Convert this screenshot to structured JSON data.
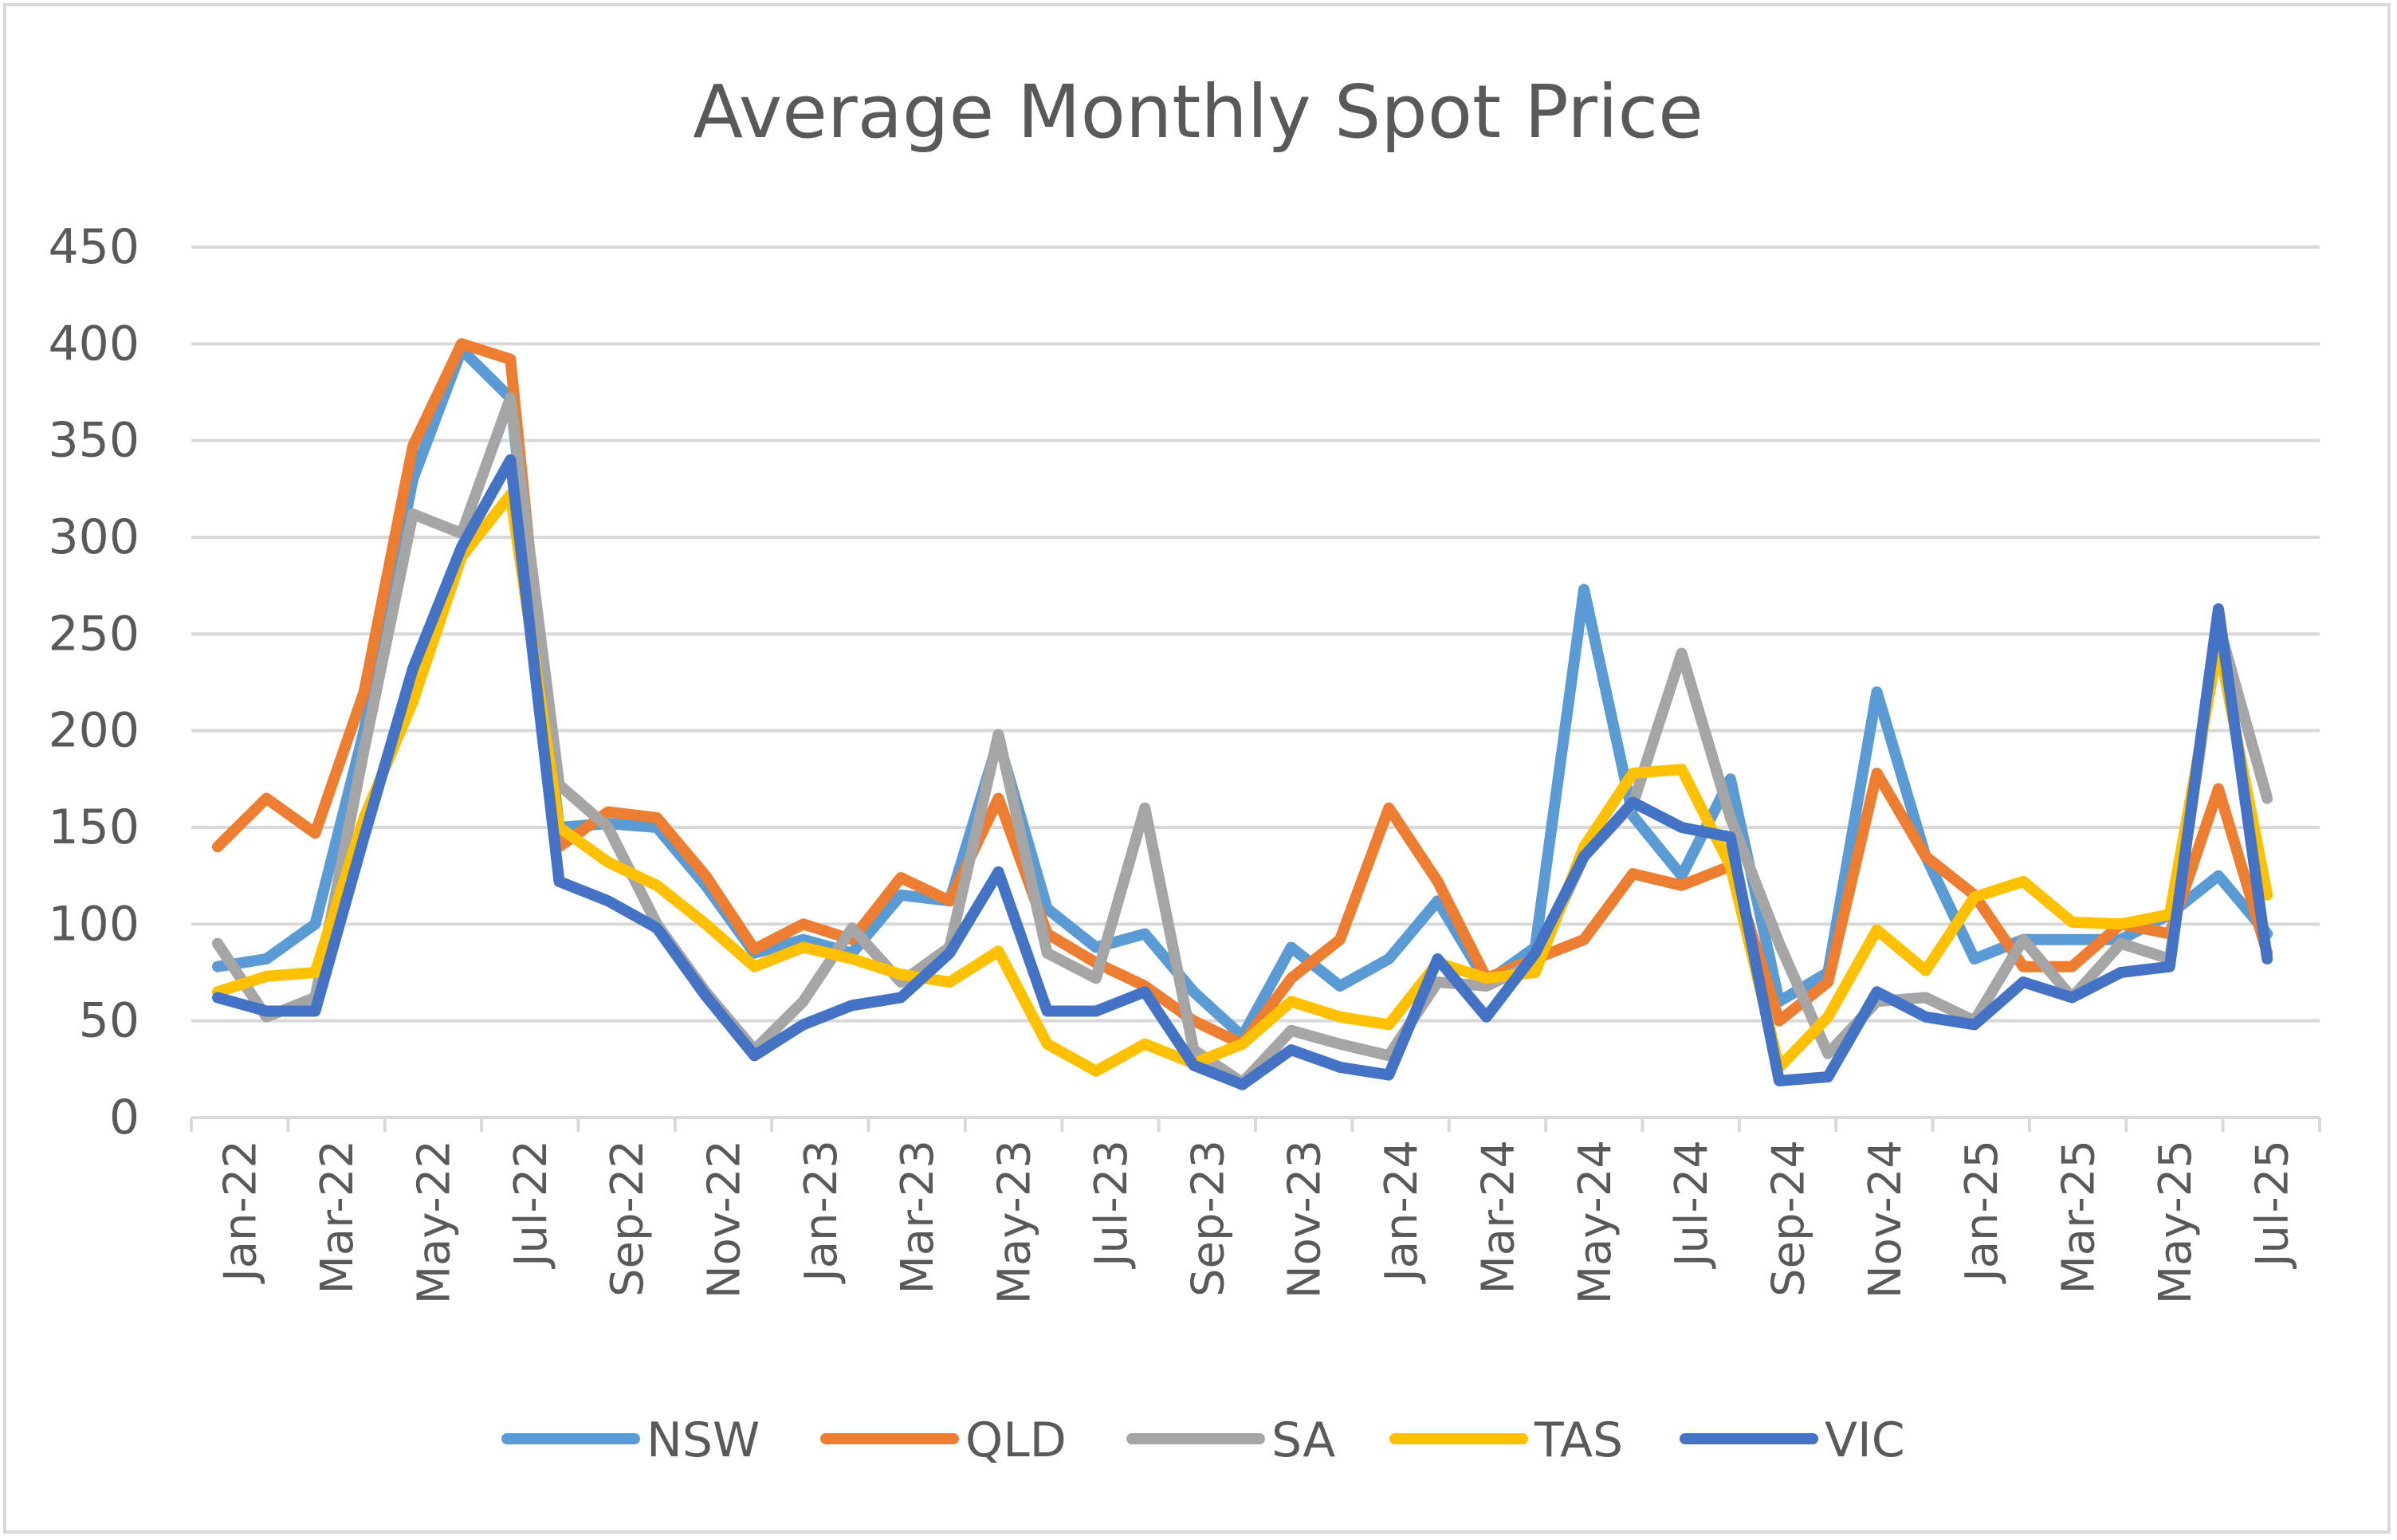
{
  "chart_data": {
    "type": "line",
    "title": "Average Monthly Spot Price",
    "xlabel": "",
    "ylabel": "",
    "ylim": [
      0,
      450
    ],
    "yticks": [
      0,
      50,
      100,
      150,
      200,
      250,
      300,
      350,
      400,
      450
    ],
    "grid": true,
    "legend_position": "bottom",
    "categories": [
      "Jan-22",
      "Feb-22",
      "Mar-22",
      "Apr-22",
      "May-22",
      "Jun-22",
      "Jul-22",
      "Aug-22",
      "Sep-22",
      "Oct-22",
      "Nov-22",
      "Dec-22",
      "Jan-23",
      "Feb-23",
      "Mar-23",
      "Apr-23",
      "May-23",
      "Jun-23",
      "Jul-23",
      "Aug-23",
      "Sep-23",
      "Oct-23",
      "Nov-23",
      "Dec-23",
      "Jan-24",
      "Feb-24",
      "Mar-24",
      "Apr-24",
      "May-24",
      "Jun-24",
      "Jul-24",
      "Aug-24",
      "Sep-24",
      "Oct-24",
      "Nov-24",
      "Dec-24",
      "Jan-25",
      "Feb-25",
      "Mar-25",
      "Apr-25",
      "May-25",
      "Jun-25",
      "Jul-25"
    ],
    "x_tick_labels": [
      "Jan-22",
      "Mar-22",
      "May-22",
      "Jul-22",
      "Sep-22",
      "Nov-22",
      "Jan-23",
      "Mar-23",
      "May-23",
      "Jul-23",
      "Sep-23",
      "Nov-23",
      "Jan-24",
      "Mar-24",
      "May-24",
      "Jul-24",
      "Sep-24",
      "Nov-24",
      "Jan-25",
      "Mar-25",
      "May-25",
      "Jul-25"
    ],
    "series": [
      {
        "name": "NSW",
        "color": "#5b9bd5",
        "values": [
          78,
          82,
          100,
          200,
          330,
          397,
          372,
          150,
          152,
          150,
          120,
          85,
          92,
          85,
          115,
          112,
          195,
          108,
          88,
          95,
          65,
          42,
          88,
          68,
          82,
          112,
          70,
          88,
          273,
          156,
          125,
          175,
          60,
          75,
          220,
          135,
          82,
          92,
          92,
          92,
          105,
          125,
          95
        ]
      },
      {
        "name": "QLD",
        "color": "#ed7d31",
        "values": [
          140,
          165,
          147,
          220,
          347,
          400,
          392,
          140,
          158,
          155,
          125,
          87,
          100,
          92,
          124,
          112,
          165,
          95,
          80,
          68,
          50,
          38,
          72,
          92,
          160,
          122,
          72,
          82,
          92,
          126,
          120,
          130,
          50,
          70,
          178,
          135,
          115,
          78,
          78,
          100,
          95,
          170,
          85
        ]
      },
      {
        "name": "SA",
        "color": "#a5a5a5",
        "values": [
          90,
          52,
          62,
          190,
          312,
          302,
          372,
          172,
          150,
          100,
          65,
          35,
          60,
          98,
          70,
          88,
          198,
          85,
          72,
          160,
          35,
          18,
          45,
          38,
          32,
          70,
          68,
          80,
          135,
          162,
          240,
          155,
          90,
          33,
          60,
          62,
          50,
          92,
          62,
          90,
          82,
          255,
          165
        ]
      },
      {
        "name": "TAS",
        "color": "#ffc000",
        "values": [
          65,
          73,
          75,
          155,
          215,
          290,
          322,
          150,
          132,
          120,
          100,
          78,
          88,
          82,
          74,
          70,
          86,
          38,
          24,
          38,
          28,
          38,
          60,
          52,
          48,
          80,
          72,
          75,
          140,
          178,
          180,
          130,
          26,
          52,
          97,
          76,
          114,
          122,
          101,
          100,
          105,
          245,
          115
        ]
      },
      {
        "name": "VIC",
        "color": "#4472c4",
        "values": [
          62,
          55,
          55,
          145,
          232,
          295,
          340,
          122,
          112,
          98,
          63,
          32,
          48,
          58,
          62,
          85,
          127,
          55,
          55,
          65,
          27,
          17,
          35,
          26,
          22,
          82,
          52,
          85,
          135,
          163,
          150,
          145,
          19,
          21,
          65,
          52,
          48,
          70,
          62,
          75,
          78,
          263,
          82
        ]
      }
    ]
  }
}
